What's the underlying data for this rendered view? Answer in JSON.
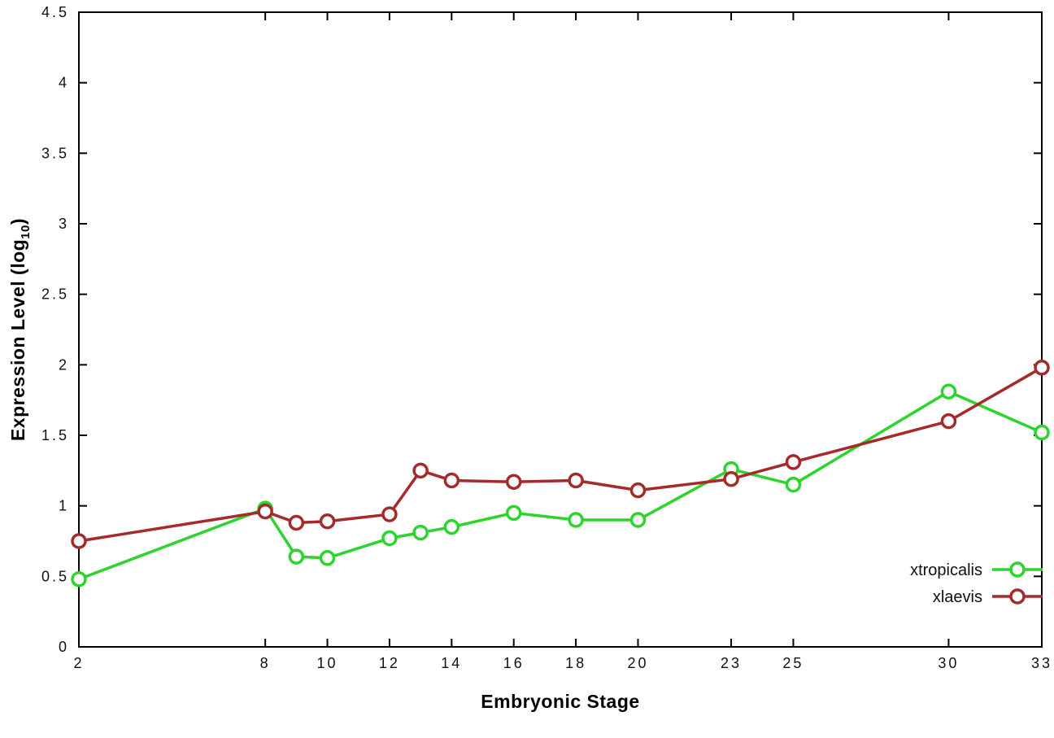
{
  "page": {
    "background": "#ffffff",
    "border_color": "#000000",
    "tick_color": "#000000"
  },
  "chart_data": {
    "type": "line",
    "title": "",
    "xlabel": "Embryonic Stage",
    "ylabel": "Expression Level (log10)",
    "ylabel_parts": {
      "main": "Expression Level (log",
      "sub": "10",
      "end": ")"
    },
    "xlim": [
      2,
      33
    ],
    "ylim": [
      0,
      4.5
    ],
    "grid": false,
    "legend_position": "inside-bottom-right",
    "x": [
      2,
      8,
      9,
      10,
      12,
      13,
      14,
      16,
      18,
      20,
      23,
      25,
      30,
      33
    ],
    "xticks": {
      "values": [
        2,
        8,
        10,
        12,
        14,
        16,
        18,
        20,
        23,
        25,
        30,
        33
      ],
      "labels": [
        "2",
        "8",
        "10",
        "12",
        "14",
        "16",
        "18",
        "20",
        "23",
        "25",
        "30",
        "33"
      ]
    },
    "yticks": {
      "values": [
        0,
        0.5,
        1,
        1.5,
        2,
        2.5,
        3,
        3.5,
        4,
        4.5
      ],
      "labels": [
        "0",
        "0.5",
        "1",
        "1.5",
        "2",
        "2.5",
        "3",
        "3.5",
        "4",
        "4.5"
      ]
    },
    "series": [
      {
        "name": "xtropicalis",
        "color": "#2ed32e",
        "marker": "open-circle",
        "values": [
          0.48,
          0.98,
          0.64,
          0.63,
          0.77,
          0.81,
          0.85,
          0.95,
          0.9,
          0.9,
          1.26,
          1.15,
          1.81,
          1.52
        ]
      },
      {
        "name": "xlaevis",
        "color": "#a52a2a",
        "marker": "open-circle",
        "values": [
          0.75,
          0.96,
          0.88,
          0.89,
          0.94,
          1.25,
          1.18,
          1.17,
          1.18,
          1.11,
          1.19,
          1.31,
          1.6,
          1.98
        ]
      }
    ]
  }
}
